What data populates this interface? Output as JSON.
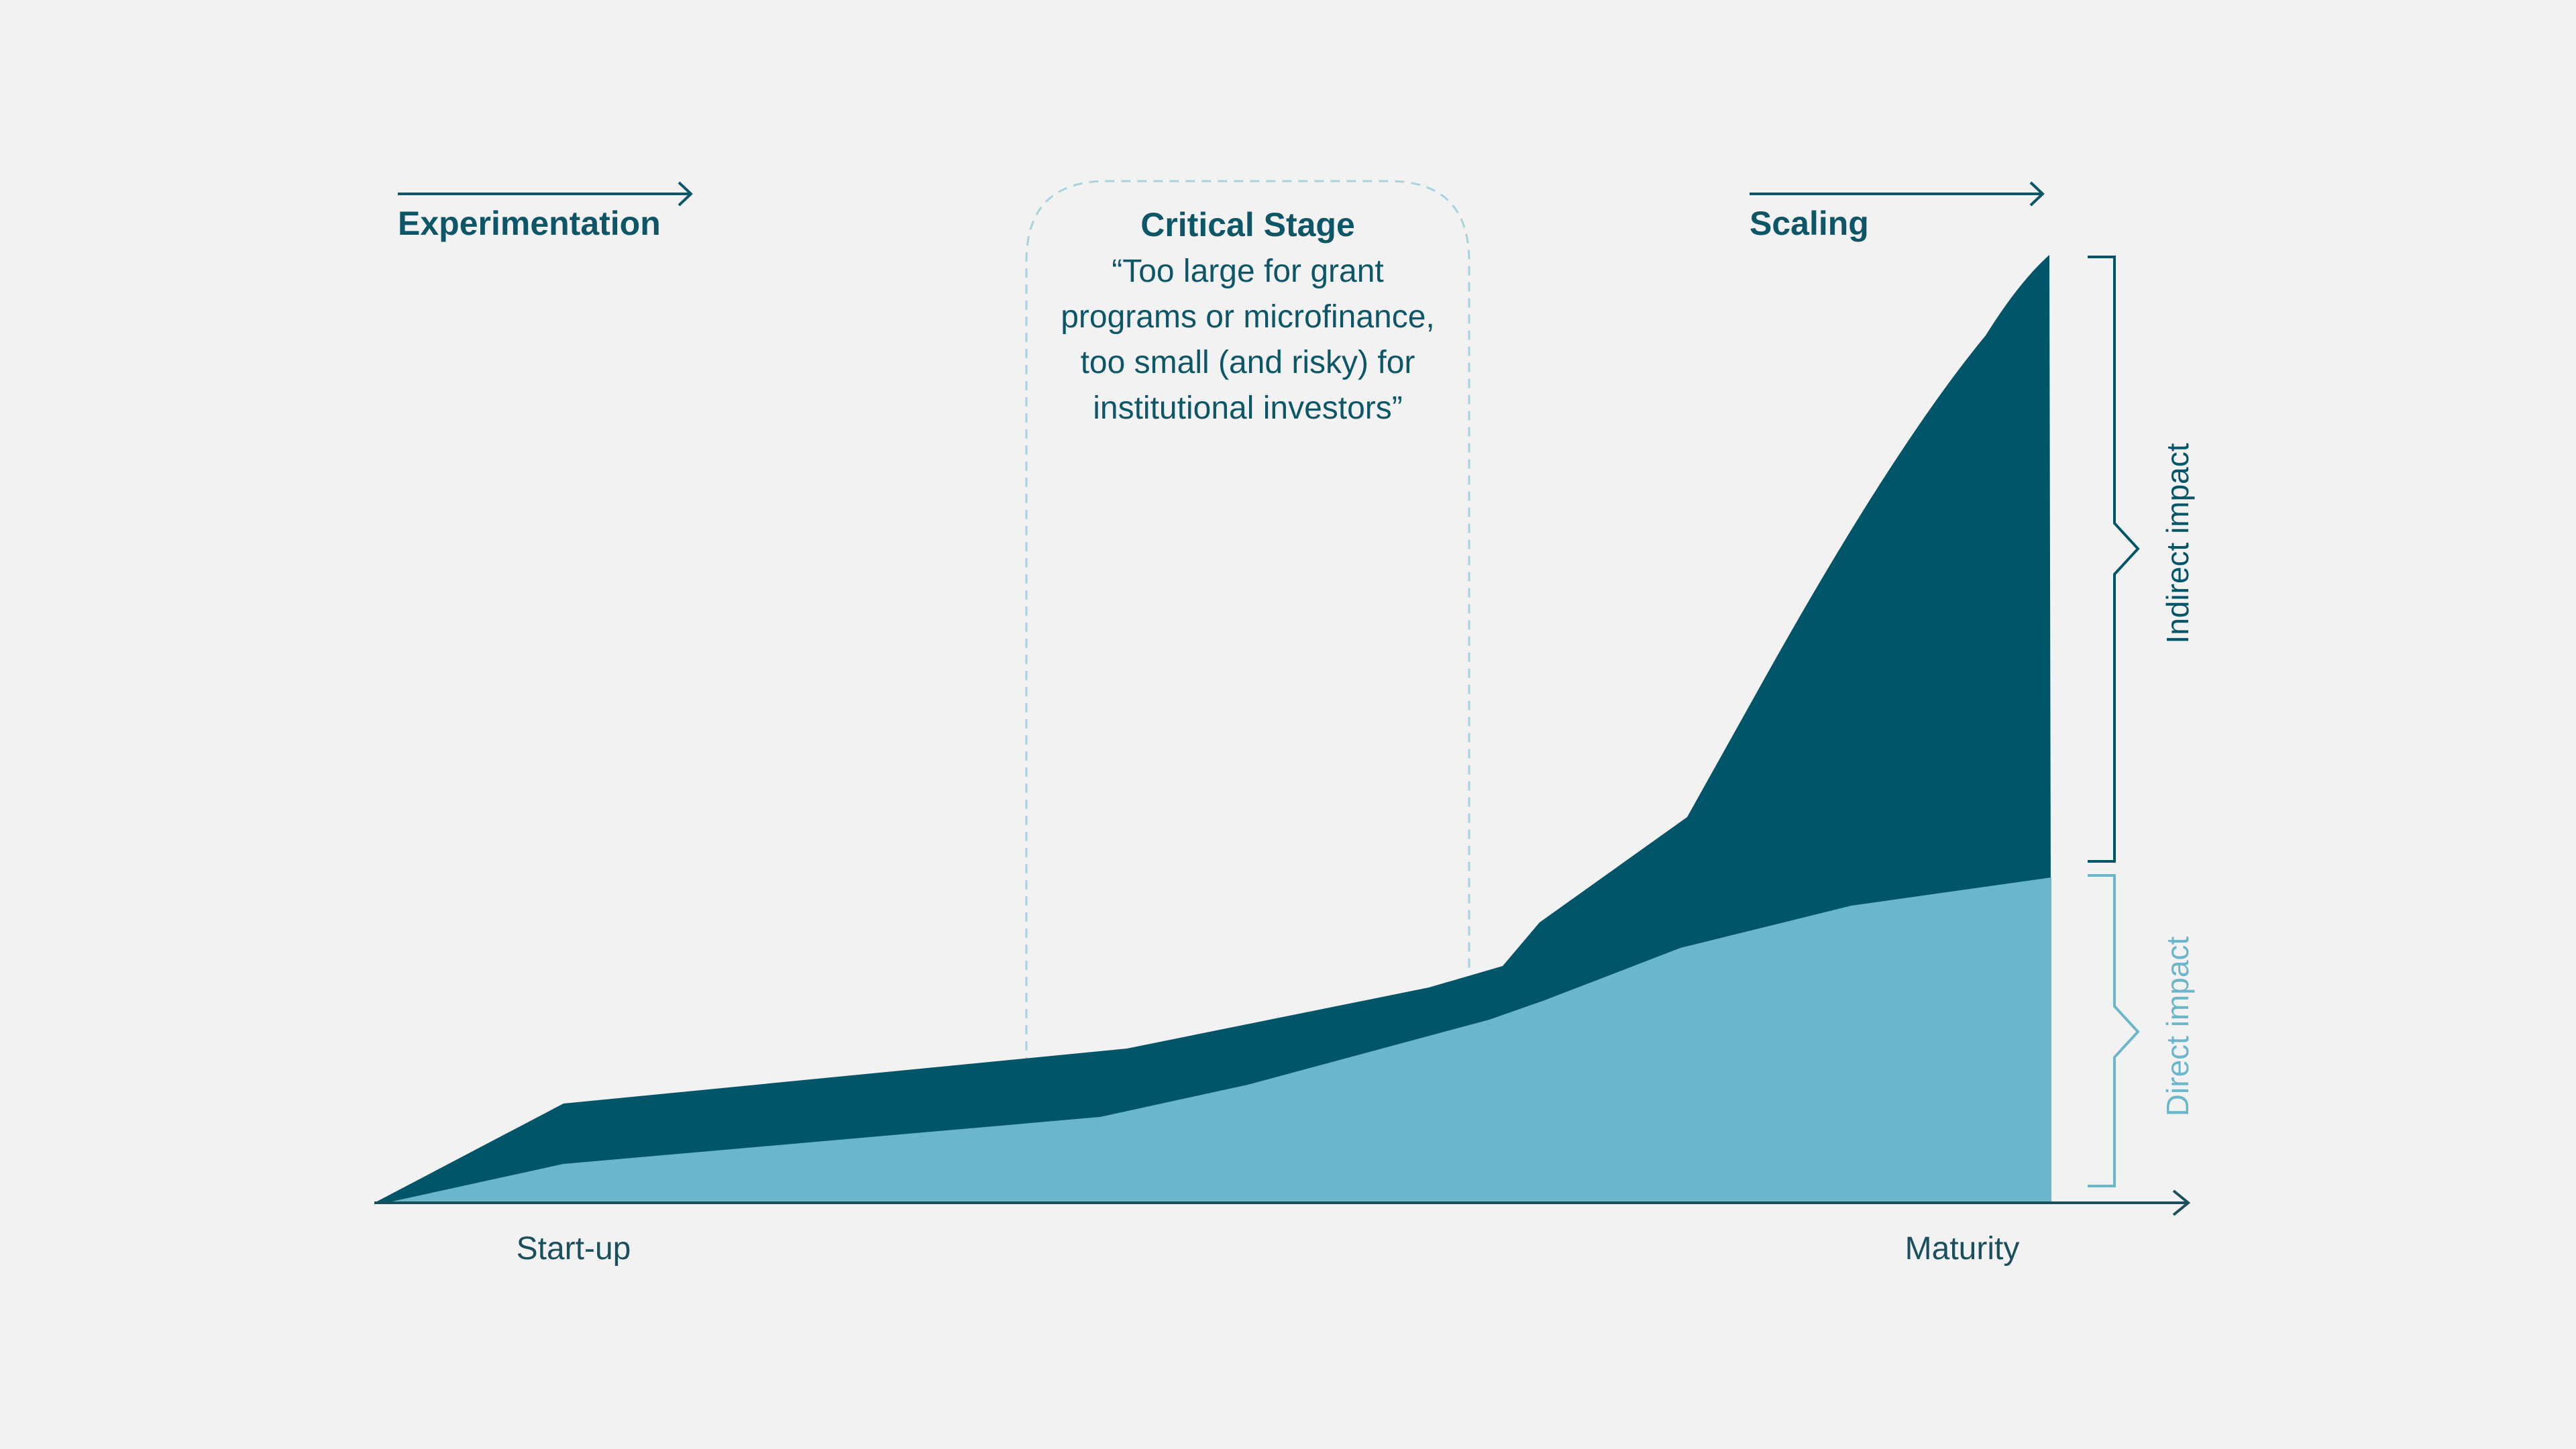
{
  "phases": {
    "experimentation": "Experimentation",
    "scaling": "Scaling"
  },
  "critical_stage": {
    "title": "Critical Stage",
    "quote_lines": [
      "“Too large for grant",
      "programs or microfinance,",
      "too small (and risky) for",
      "institutional investors”"
    ]
  },
  "axis": {
    "start": "Start-up",
    "end": "Maturity"
  },
  "brackets": {
    "indirect": "Indirect impact",
    "direct": "Direct impact"
  },
  "colors": {
    "background": "#f2f2f2",
    "dark_teal": "#005569",
    "light_teal": "#6ab7cb",
    "dashed_outline": "#a8d3de",
    "text_dark": "#0d5668"
  }
}
